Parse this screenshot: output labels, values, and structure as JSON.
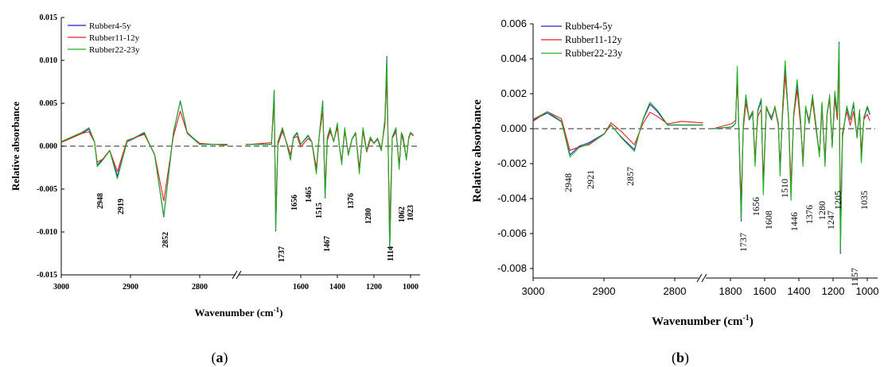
{
  "chart_data": [
    {
      "type": "line",
      "panel_label": "a",
      "xlabel": "Wavenumber (cm",
      "xlabel_sup": "-1",
      "xlabel_end": ")",
      "ylabel": "Relative absorbance",
      "ylim": [
        -0.015,
        0.015
      ],
      "y_ticks": [
        "0.015",
        "0.010",
        "0.005",
        "0.000",
        "-0.005",
        "-0.010",
        "-0.015"
      ],
      "x_ticks": [
        "3000",
        "2900",
        "2800",
        "1600",
        "1400",
        "1200",
        "1000"
      ],
      "x_break": "2700–1900 (axis break)",
      "legend_position": "top-left",
      "series": [
        {
          "name": "Rubber4-5y",
          "color": "#1f1fd0"
        },
        {
          "name": "Rubber11-12y",
          "color": "#e02020"
        },
        {
          "name": "Rubber22-23y",
          "color": "#20b020"
        }
      ],
      "annotations": [
        "2948",
        "2919",
        "2852",
        "1737",
        "1656",
        "1465",
        "1515",
        "1467",
        "1376",
        "1280",
        "1114",
        "1062",
        "1023"
      ],
      "points": {
        "left": [
          [
            3000,
            0.0005
          ],
          [
            2970,
            0.0015
          ],
          [
            2960,
            0.002
          ],
          [
            2952,
            0.0005
          ],
          [
            2948,
            -0.0022
          ],
          [
            2940,
            -0.0015
          ],
          [
            2930,
            -0.0005
          ],
          [
            2919,
            -0.0035
          ],
          [
            2905,
            0.0005
          ],
          [
            2880,
            0.0015
          ],
          [
            2865,
            -0.001
          ],
          [
            2852,
            -0.0075
          ],
          [
            2838,
            0.0015
          ],
          [
            2828,
            0.0048
          ],
          [
            2818,
            0.0015
          ],
          [
            2800,
            0.0002
          ],
          [
            2760,
            0.0002
          ]
        ],
        "right": [
          [
            1900,
            0.0002
          ],
          [
            1780,
            0.0002
          ],
          [
            1760,
            0.0002
          ],
          [
            1745,
            0.0059
          ],
          [
            1737,
            -0.009
          ],
          [
            1725,
            0.0005
          ],
          [
            1700,
            0.002
          ],
          [
            1680,
            0.0005
          ],
          [
            1656,
            -0.0015
          ],
          [
            1640,
            0.001
          ],
          [
            1620,
            0.0015
          ],
          [
            1600,
            0.0002
          ],
          [
            1560,
            0.0012
          ],
          [
            1540,
            0.0005
          ],
          [
            1515,
            -0.003
          ],
          [
            1500,
            0.001
          ],
          [
            1480,
            0.0048
          ],
          [
            1467,
            -0.0055
          ],
          [
            1455,
            0.001
          ],
          [
            1440,
            0.002
          ],
          [
            1420,
            0.0005
          ],
          [
            1400,
            0.0025
          ],
          [
            1390,
            0.0002
          ],
          [
            1376,
            -0.002
          ],
          [
            1360,
            0.002
          ],
          [
            1340,
            -0.001
          ],
          [
            1320,
            0.0008
          ],
          [
            1300,
            0.0015
          ],
          [
            1280,
            -0.003
          ],
          [
            1260,
            0.002
          ],
          [
            1240,
            -0.0005
          ],
          [
            1220,
            0.001
          ],
          [
            1200,
            0.0003
          ],
          [
            1180,
            0.0008
          ],
          [
            1160,
            -0.0005
          ],
          [
            1140,
            0.003
          ],
          [
            1130,
            0.0095
          ],
          [
            1114,
            -0.011
          ],
          [
            1100,
            0.001
          ],
          [
            1080,
            0.002
          ],
          [
            1062,
            -0.0025
          ],
          [
            1050,
            0.0015
          ],
          [
            1040,
            0.001
          ],
          [
            1023,
            -0.0015
          ],
          [
            1010,
            0.001
          ],
          [
            1000,
            0.0015
          ],
          [
            985,
            0.0012
          ]
        ]
      }
    },
    {
      "type": "line",
      "panel_label": "b",
      "xlabel": "Wavenumber (cm",
      "xlabel_sup": "-1",
      "xlabel_end": ")",
      "ylabel": "Relative absorbance",
      "ylim": [
        -0.008,
        0.006
      ],
      "y_ticks": [
        "0.006",
        "0.004",
        "0.002",
        "0.000",
        "-0.002",
        "-0.004",
        "-0.006",
        "-0.008"
      ],
      "x_ticks": [
        "3000",
        "2900",
        "2800",
        "1800",
        "1600",
        "1400",
        "1200",
        "1000"
      ],
      "x_break": "2700–1900 (axis break)",
      "legend_position": "top-left",
      "series": [
        {
          "name": "Rubber4-5y",
          "color": "#1f1fd0"
        },
        {
          "name": "Rubber11-12y",
          "color": "#e02020"
        },
        {
          "name": "Rubber22-23y",
          "color": "#20b020"
        }
      ],
      "annotations": [
        "2948",
        "2921",
        "2857",
        "1737",
        "1656",
        "1608",
        "1510",
        "1446",
        "1376",
        "1280",
        "1247",
        "1205",
        "1157",
        "1035"
      ],
      "points": {
        "left": [
          [
            3000,
            0.0005
          ],
          [
            2980,
            0.0009
          ],
          [
            2960,
            0.0004
          ],
          [
            2948,
            -0.0015
          ],
          [
            2935,
            -0.001
          ],
          [
            2921,
            -0.0008
          ],
          [
            2900,
            -0.0003
          ],
          [
            2890,
            0.0002
          ],
          [
            2875,
            -0.0005
          ],
          [
            2857,
            -0.0012
          ],
          [
            2845,
            0.0005
          ],
          [
            2835,
            0.0014
          ],
          [
            2825,
            0.001
          ],
          [
            2810,
            0.0002
          ],
          [
            2790,
            0.0002
          ],
          [
            2760,
            0.0002
          ]
        ],
        "right": [
          [
            1900,
            0.0
          ],
          [
            1790,
            0.0001
          ],
          [
            1770,
            0.0003
          ],
          [
            1760,
            0.0033
          ],
          [
            1737,
            -0.0048
          ],
          [
            1725,
            0.0002
          ],
          [
            1710,
            0.0018
          ],
          [
            1690,
            0.0005
          ],
          [
            1670,
            0.0009
          ],
          [
            1656,
            -0.002
          ],
          [
            1640,
            0.001
          ],
          [
            1620,
            0.0016
          ],
          [
            1608,
            -0.0035
          ],
          [
            1590,
            0.0012
          ],
          [
            1560,
            0.0005
          ],
          [
            1540,
            0.0012
          ],
          [
            1520,
            0.0003
          ],
          [
            1510,
            -0.0025
          ],
          [
            1495,
            0.0012
          ],
          [
            1480,
            0.0036
          ],
          [
            1460,
            0.0005
          ],
          [
            1446,
            -0.0038
          ],
          [
            1430,
            0.0008
          ],
          [
            1410,
            0.0026
          ],
          [
            1390,
            0.0005
          ],
          [
            1376,
            -0.002
          ],
          [
            1360,
            0.0012
          ],
          [
            1340,
            0.0003
          ],
          [
            1320,
            0.0018
          ],
          [
            1300,
            0.0002
          ],
          [
            1280,
            -0.0015
          ],
          [
            1265,
            0.0014
          ],
          [
            1247,
            -0.002
          ],
          [
            1235,
            0.0008
          ],
          [
            1220,
            0.0018
          ],
          [
            1205,
            -0.001
          ],
          [
            1190,
            0.002
          ],
          [
            1175,
            0.0008
          ],
          [
            1165,
            0.0045
          ],
          [
            1157,
            -0.0065
          ],
          [
            1145,
            -0.0005
          ],
          [
            1120,
            0.0012
          ],
          [
            1100,
            0.0005
          ],
          [
            1080,
            0.0014
          ],
          [
            1060,
            -0.0005
          ],
          [
            1045,
            0.001
          ],
          [
            1035,
            -0.0018
          ],
          [
            1020,
            0.0006
          ],
          [
            1000,
            0.0012
          ],
          [
            985,
            0.0008
          ]
        ]
      }
    }
  ]
}
